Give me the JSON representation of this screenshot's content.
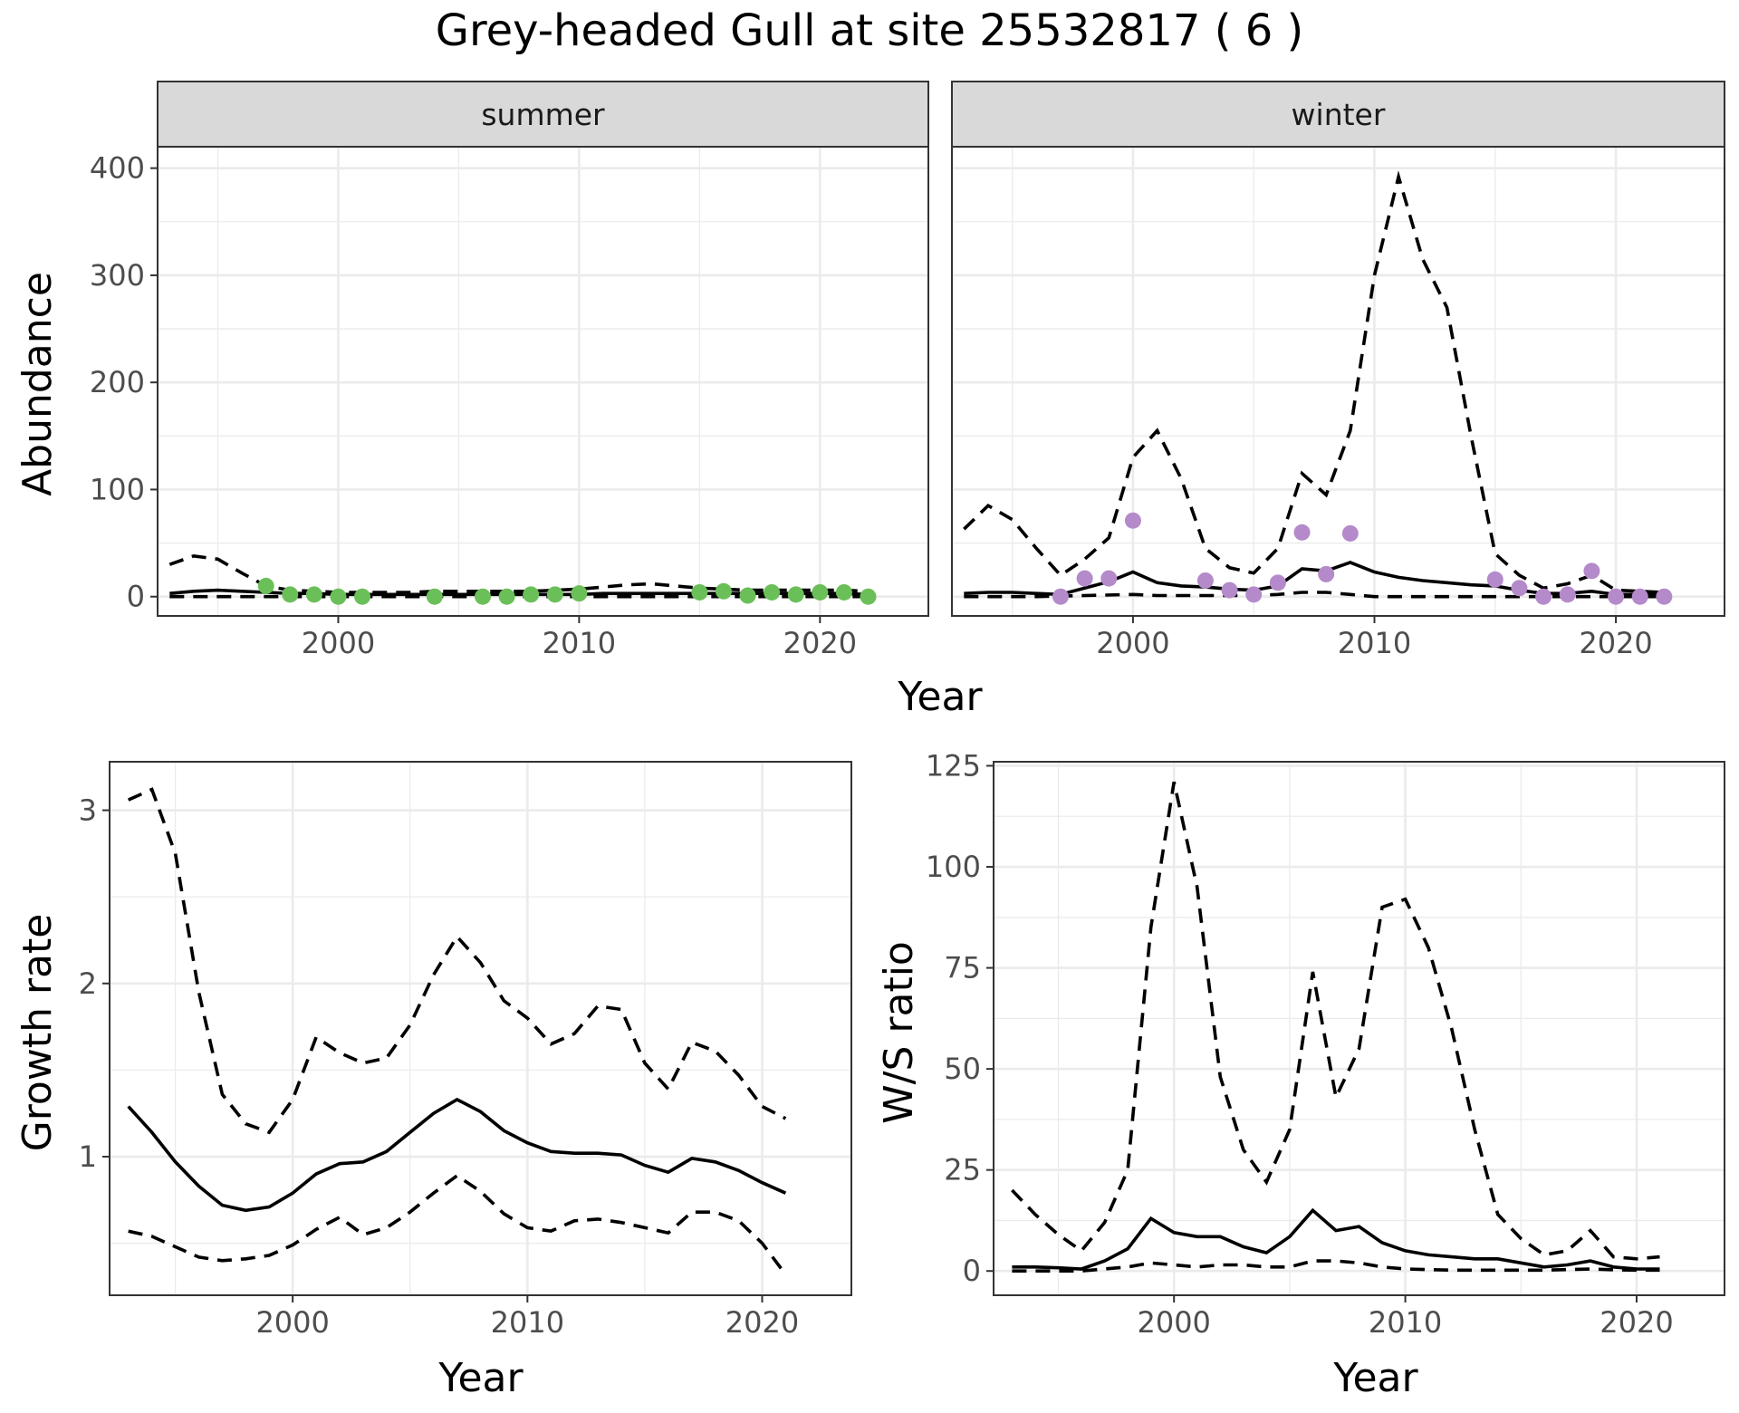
{
  "title": "Grey-headed Gull at site 25532817 ( 6 )",
  "colors": {
    "summer_points": "#6bbf59",
    "winter_points": "#b48acb",
    "lines": "#000000"
  },
  "chart_data": [
    {
      "id": "abundance",
      "type": "line",
      "xlabel": "Year",
      "ylabel": "Abundance",
      "xlim": [
        1992.5,
        2024.5
      ],
      "ylim": [
        -18,
        420
      ],
      "xticks": [
        2000,
        2010,
        2020
      ],
      "yticks": [
        0,
        100,
        200,
        300,
        400
      ],
      "grid": true,
      "facets": [
        {
          "label": "summer",
          "series": [
            {
              "style": "solid",
              "x": [
                1993,
                1994,
                1995,
                1996,
                1997,
                1998,
                1999,
                2000,
                2001,
                2002,
                2003,
                2004,
                2005,
                2006,
                2007,
                2008,
                2009,
                2010,
                2011,
                2012,
                2013,
                2014,
                2015,
                2016,
                2017,
                2018,
                2019,
                2020,
                2021,
                2022
              ],
              "y": [
                3,
                5,
                6,
                5,
                4,
                3,
                3,
                2,
                2,
                2,
                2,
                2,
                2,
                2,
                2,
                2,
                2,
                2,
                3,
                3,
                3,
                3,
                3,
                3,
                3,
                3,
                3,
                3,
                3,
                2
              ]
            },
            {
              "style": "dashed",
              "x": [
                1993,
                1994,
                1995,
                1996,
                1997,
                1998,
                1999,
                2000,
                2001,
                2002,
                2003,
                2004,
                2005,
                2006,
                2007,
                2008,
                2009,
                2010,
                2011,
                2012,
                2013,
                2014,
                2015,
                2016,
                2017,
                2018,
                2019,
                2020,
                2021,
                2022
              ],
              "y": [
                30,
                38,
                35,
                22,
                10,
                6,
                5,
                4,
                4,
                4,
                4,
                5,
                5,
                5,
                5,
                5,
                6,
                7,
                9,
                11,
                12,
                10,
                8,
                7,
                6,
                6,
                6,
                6,
                6,
                5
              ]
            },
            {
              "style": "dashed",
              "x": [
                1993,
                2022
              ],
              "y": [
                0,
                0
              ]
            }
          ],
          "points": {
            "x": [
              1997,
              1998,
              1999,
              2000,
              2001,
              2004,
              2006,
              2007,
              2008,
              2009,
              2010,
              2015,
              2016,
              2017,
              2018,
              2019,
              2020,
              2021,
              2022
            ],
            "y": [
              10,
              2,
              2,
              0,
              0,
              0,
              0,
              0,
              2,
              2,
              3,
              4,
              5,
              1,
              4,
              2,
              4,
              4,
              0
            ]
          }
        },
        {
          "label": "winter",
          "series": [
            {
              "style": "solid",
              "x": [
                1993,
                1994,
                1995,
                1996,
                1997,
                1998,
                1999,
                2000,
                2001,
                2002,
                2003,
                2004,
                2005,
                2006,
                2007,
                2008,
                2009,
                2010,
                2011,
                2012,
                2013,
                2014,
                2015,
                2016,
                2017,
                2018,
                2019,
                2020,
                2021,
                2022
              ],
              "y": [
                3,
                4,
                4,
                3,
                2,
                8,
                14,
                23,
                13,
                10,
                9,
                7,
                6,
                10,
                26,
                24,
                32,
                23,
                18,
                15,
                13,
                11,
                10,
                6,
                3,
                3,
                5,
                2,
                2,
                2
              ]
            },
            {
              "style": "dashed",
              "x": [
                1993,
                1994,
                1995,
                1996,
                1997,
                1998,
                1999,
                2000,
                2001,
                2002,
                2003,
                2004,
                2005,
                2006,
                2007,
                2008,
                2009,
                2010,
                2011,
                2012,
                2013,
                2014,
                2015,
                2016,
                2017,
                2018,
                2019,
                2020,
                2021,
                2022
              ],
              "y": [
                63,
                85,
                72,
                45,
                20,
                35,
                55,
                130,
                155,
                110,
                45,
                27,
                22,
                45,
                115,
                95,
                155,
                300,
                392,
                315,
                270,
                150,
                40,
                20,
                8,
                12,
                20,
                6,
                5,
                4
              ]
            },
            {
              "style": "dashed",
              "x": [
                1993,
                1996,
                1998,
                2000,
                2001,
                2003,
                2005,
                2006,
                2007,
                2008,
                2009,
                2010,
                2012,
                2014,
                2016,
                2018,
                2020,
                2022
              ],
              "y": [
                0,
                0,
                1,
                2,
                1,
                1,
                1,
                2,
                4,
                4,
                2,
                0,
                0,
                0,
                0,
                0,
                0,
                0
              ]
            }
          ],
          "points": {
            "x": [
              1997,
              1998,
              1999,
              2000,
              2003,
              2004,
              2005,
              2006,
              2007,
              2008,
              2009,
              2015,
              2016,
              2017,
              2018,
              2019,
              2020,
              2021,
              2022
            ],
            "y": [
              0,
              17,
              17,
              71,
              15,
              6,
              2,
              13,
              60,
              21,
              59,
              16,
              8,
              0,
              2,
              24,
              0,
              0,
              0
            ]
          }
        }
      ]
    },
    {
      "id": "growth",
      "type": "line",
      "xlabel": "Year",
      "ylabel": "Growth rate",
      "xlim": [
        1992.2,
        2023.8
      ],
      "ylim": [
        0.2,
        3.28
      ],
      "xticks": [
        2000,
        2010,
        2020
      ],
      "yticks": [
        1,
        2,
        3
      ],
      "grid": true,
      "series": [
        {
          "style": "solid",
          "x": [
            1993,
            1994,
            1995,
            1996,
            1997,
            1998,
            1999,
            2000,
            2001,
            2002,
            2003,
            2004,
            2005,
            2006,
            2007,
            2008,
            2009,
            2010,
            2011,
            2012,
            2013,
            2014,
            2015,
            2016,
            2017,
            2018,
            2019,
            2020,
            2021
          ],
          "y": [
            1.29,
            1.14,
            0.97,
            0.83,
            0.72,
            0.69,
            0.71,
            0.79,
            0.9,
            0.96,
            0.97,
            1.03,
            1.14,
            1.25,
            1.33,
            1.26,
            1.15,
            1.08,
            1.03,
            1.02,
            1.02,
            1.01,
            0.95,
            0.91,
            0.99,
            0.97,
            0.92,
            0.85,
            0.79
          ]
        },
        {
          "style": "dashed",
          "x": [
            1993,
            1994,
            1995,
            1996,
            1997,
            1998,
            1999,
            2000,
            2001,
            2002,
            2003,
            2004,
            2005,
            2006,
            2007,
            2008,
            2009,
            2010,
            2011,
            2012,
            2013,
            2014,
            2015,
            2016,
            2017,
            2018,
            2019,
            2020,
            2021
          ],
          "y": [
            3.06,
            3.12,
            2.75,
            1.95,
            1.36,
            1.19,
            1.14,
            1.33,
            1.69,
            1.6,
            1.54,
            1.57,
            1.76,
            2.05,
            2.27,
            2.12,
            1.9,
            1.8,
            1.65,
            1.71,
            1.87,
            1.85,
            1.54,
            1.39,
            1.66,
            1.61,
            1.47,
            1.29,
            1.22
          ]
        },
        {
          "style": "dashed",
          "x": [
            1993,
            1994,
            1995,
            1996,
            1997,
            1998,
            1999,
            2000,
            2001,
            2002,
            2003,
            2004,
            2005,
            2006,
            2007,
            2008,
            2009,
            2010,
            2011,
            2012,
            2013,
            2014,
            2015,
            2016,
            2017,
            2018,
            2019,
            2020,
            2021
          ],
          "y": [
            0.57,
            0.54,
            0.48,
            0.42,
            0.4,
            0.41,
            0.43,
            0.49,
            0.58,
            0.65,
            0.55,
            0.59,
            0.68,
            0.79,
            0.89,
            0.8,
            0.67,
            0.59,
            0.57,
            0.63,
            0.64,
            0.62,
            0.59,
            0.56,
            0.68,
            0.68,
            0.63,
            0.5,
            0.32
          ]
        }
      ]
    },
    {
      "id": "ws_ratio",
      "type": "line",
      "xlabel": "Year",
      "ylabel": "W/S ratio",
      "xlim": [
        1992.2,
        2023.8
      ],
      "ylim": [
        -6,
        126
      ],
      "xticks": [
        2000,
        2010,
        2020
      ],
      "yticks": [
        0,
        25,
        50,
        75,
        100,
        125
      ],
      "grid": true,
      "series": [
        {
          "style": "solid",
          "x": [
            1993,
            1994,
            1995,
            1996,
            1997,
            1998,
            1999,
            2000,
            2001,
            2002,
            2003,
            2004,
            2005,
            2006,
            2007,
            2008,
            2009,
            2010,
            2011,
            2012,
            2013,
            2014,
            2015,
            2016,
            2017,
            2018,
            2019,
            2020,
            2021
          ],
          "y": [
            1,
            1,
            0.8,
            0.5,
            2.5,
            5.5,
            13,
            9.5,
            8.5,
            8.5,
            6,
            4.5,
            8.5,
            15,
            10,
            11,
            7,
            5,
            4,
            3.5,
            3,
            3,
            2,
            1,
            1.5,
            2.5,
            1,
            0.5,
            0.5
          ]
        },
        {
          "style": "dashed",
          "x": [
            1993,
            1994,
            1995,
            1996,
            1997,
            1998,
            1999,
            2000,
            2001,
            2002,
            2003,
            2004,
            2005,
            2006,
            2007,
            2008,
            2009,
            2010,
            2011,
            2012,
            2013,
            2014,
            2015,
            2016,
            2017,
            2018,
            2019,
            2020,
            2021
          ],
          "y": [
            20,
            14,
            9,
            5,
            12,
            25,
            85,
            121,
            95,
            48,
            30,
            22,
            35,
            74,
            43,
            55,
            90,
            92,
            80,
            60,
            35,
            14,
            8,
            4,
            5,
            10,
            3.5,
            3,
            3.5
          ]
        },
        {
          "style": "dashed",
          "x": [
            1993,
            1995,
            1996,
            1997,
            1998,
            1999,
            2000,
            2001,
            2002,
            2003,
            2004,
            2005,
            2006,
            2007,
            2008,
            2009,
            2010,
            2012,
            2014,
            2016,
            2018,
            2019,
            2020,
            2021
          ],
          "y": [
            0,
            0,
            0,
            0.5,
            1,
            2,
            1.5,
            1,
            1.5,
            1.5,
            1,
            1,
            2.5,
            2.5,
            2,
            1,
            0.5,
            0.2,
            0.2,
            0.2,
            0.5,
            0.3,
            0.2,
            0.2
          ]
        }
      ]
    }
  ]
}
